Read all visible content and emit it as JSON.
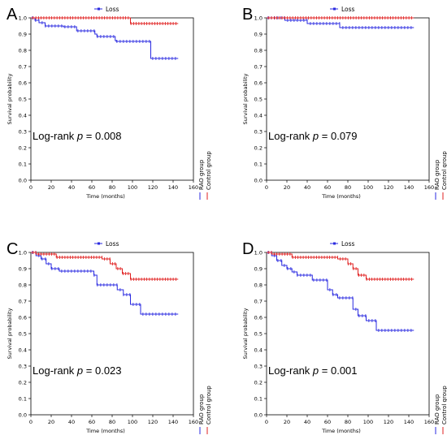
{
  "chart_data": [
    {
      "type": "line",
      "panel_label": "A",
      "legend_title": "Loss",
      "xlabel": "Time (months)",
      "ylabel": "Survival probability",
      "xlim": [
        0,
        160
      ],
      "ylim": [
        0,
        1.0
      ],
      "xticks": [
        "0",
        "20",
        "40",
        "60",
        "80",
        "100",
        "120",
        "140",
        "160"
      ],
      "yticks": [
        "0.0",
        "0.1",
        "0.2",
        "0.3",
        "0.4",
        "0.5",
        "0.6",
        "0.7",
        "0.8",
        "0.9",
        "1.0"
      ],
      "annotation": {
        "prefix": "Log-rank ",
        "p": "p",
        "value": " = 0.008"
      },
      "series": [
        {
          "name": "RAO group",
          "color": "#2a2ae0",
          "x": [
            0,
            4,
            8,
            14,
            32,
            45,
            63,
            65,
            78,
            83,
            84,
            118,
            145
          ],
          "y": [
            1.0,
            0.985,
            0.97,
            0.95,
            0.945,
            0.92,
            0.9,
            0.885,
            0.885,
            0.86,
            0.855,
            0.75,
            0.75
          ]
        },
        {
          "name": "Control group",
          "color": "#e02020",
          "x": [
            0,
            98,
            145
          ],
          "y": [
            1.0,
            0.965,
            0.965
          ]
        }
      ]
    },
    {
      "type": "line",
      "panel_label": "B",
      "legend_title": "Loss",
      "xlabel": "Time (months)",
      "ylabel": "Survival probability",
      "xlim": [
        0,
        160
      ],
      "ylim": [
        0,
        1.0
      ],
      "xticks": [
        "0",
        "20",
        "40",
        "60",
        "80",
        "100",
        "120",
        "140",
        "160"
      ],
      "yticks": [
        "0.0",
        "0.1",
        "0.2",
        "0.3",
        "0.4",
        "0.5",
        "0.6",
        "0.7",
        "0.8",
        "0.9",
        "1.0"
      ],
      "annotation": {
        "prefix": "Log-rank ",
        "p": "p",
        "value": " = 0.079"
      },
      "series": [
        {
          "name": "RAO group",
          "color": "#2a2ae0",
          "x": [
            0,
            18,
            40,
            72,
            145
          ],
          "y": [
            1.0,
            0.985,
            0.965,
            0.94,
            0.94
          ]
        },
        {
          "name": "Control group",
          "color": "#e02020",
          "x": [
            0,
            145
          ],
          "y": [
            1.0,
            1.0
          ]
        }
      ]
    },
    {
      "type": "line",
      "panel_label": "C",
      "legend_title": "Loss",
      "xlabel": "Time (months)",
      "ylabel": "Survival probability",
      "xlim": [
        0,
        160
      ],
      "ylim": [
        0,
        1.0
      ],
      "xticks": [
        "0",
        "20",
        "40",
        "60",
        "80",
        "100",
        "120",
        "140",
        "160"
      ],
      "yticks": [
        "0.0",
        "0.1",
        "0.2",
        "0.3",
        "0.4",
        "0.5",
        "0.6",
        "0.7",
        "0.8",
        "0.9",
        "1.0"
      ],
      "annotation": {
        "prefix": "Log-rank ",
        "p": "p",
        "value": " = 0.023"
      },
      "series": [
        {
          "name": "RAO group",
          "color": "#2a2ae0",
          "x": [
            0,
            5,
            10,
            15,
            20,
            28,
            62,
            65,
            80,
            85,
            91,
            98,
            108,
            145
          ],
          "y": [
            1.0,
            0.98,
            0.96,
            0.93,
            0.9,
            0.885,
            0.86,
            0.8,
            0.8,
            0.77,
            0.74,
            0.68,
            0.62,
            0.62
          ]
        },
        {
          "name": "Control group",
          "color": "#e02020",
          "x": [
            0,
            5,
            25,
            70,
            78,
            84,
            90,
            98,
            145
          ],
          "y": [
            1.0,
            0.99,
            0.97,
            0.96,
            0.93,
            0.9,
            0.87,
            0.835,
            0.835
          ]
        }
      ]
    },
    {
      "type": "line",
      "panel_label": "D",
      "legend_title": "Loss",
      "xlabel": "Time (months)",
      "ylabel": "Survival probability",
      "xlim": [
        0,
        160
      ],
      "ylim": [
        0,
        1.0
      ],
      "xticks": [
        "0",
        "20",
        "40",
        "60",
        "80",
        "100",
        "120",
        "140",
        "160"
      ],
      "yticks": [
        "0.0",
        "0.1",
        "0.2",
        "0.3",
        "0.4",
        "0.5",
        "0.6",
        "0.7",
        "0.8",
        "0.9",
        "1.0"
      ],
      "annotation": {
        "prefix": "Log-rank ",
        "p": "p",
        "value": " = 0.001"
      },
      "series": [
        {
          "name": "RAO group",
          "color": "#2a2ae0",
          "x": [
            0,
            5,
            10,
            15,
            20,
            25,
            30,
            45,
            60,
            65,
            70,
            85,
            90,
            98,
            108,
            145
          ],
          "y": [
            1.0,
            0.98,
            0.95,
            0.92,
            0.9,
            0.88,
            0.86,
            0.83,
            0.77,
            0.74,
            0.72,
            0.65,
            0.61,
            0.58,
            0.52,
            0.52
          ]
        },
        {
          "name": "Control group",
          "color": "#e02020",
          "x": [
            0,
            5,
            25,
            70,
            80,
            85,
            90,
            98,
            145
          ],
          "y": [
            1.0,
            0.99,
            0.97,
            0.96,
            0.93,
            0.9,
            0.86,
            0.835,
            0.835
          ]
        }
      ]
    }
  ]
}
